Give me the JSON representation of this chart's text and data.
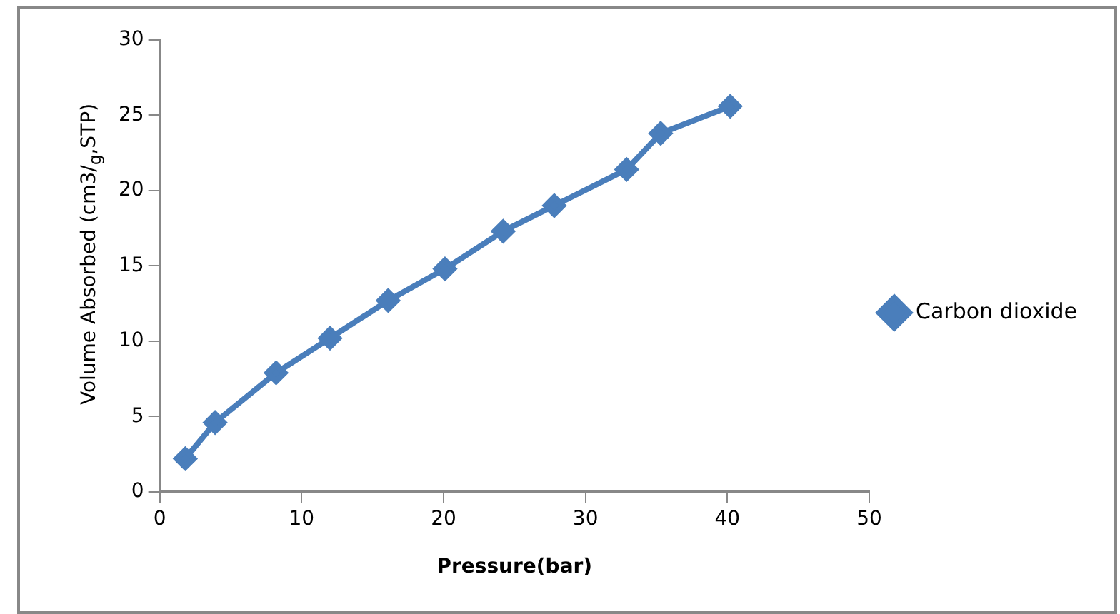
{
  "chart_data": {
    "type": "line",
    "xlabel": "Pressure(bar)",
    "ylabel": "Volume Absorbed (cm3/$_{g}$,STP)",
    "x": [
      1.8,
      3.9,
      8.2,
      12.0,
      16.1,
      20.1,
      24.2,
      27.8,
      32.9,
      35.3,
      40.2
    ],
    "series": [
      {
        "name": "Carbon dioxide",
        "color": "#4a7ebb",
        "values": [
          2.2,
          4.6,
          7.9,
          10.2,
          12.7,
          14.8,
          17.3,
          19.0,
          21.4,
          23.8,
          25.6
        ]
      }
    ],
    "xlim": [
      0,
      50
    ],
    "xticks": [
      0,
      10,
      20,
      30,
      40,
      50
    ],
    "ylim": [
      0,
      30
    ],
    "yticks": [
      0,
      5,
      10,
      15,
      20,
      25,
      30
    ],
    "grid": false,
    "legend": "right",
    "marker": "diamond",
    "line_style": "solid"
  }
}
